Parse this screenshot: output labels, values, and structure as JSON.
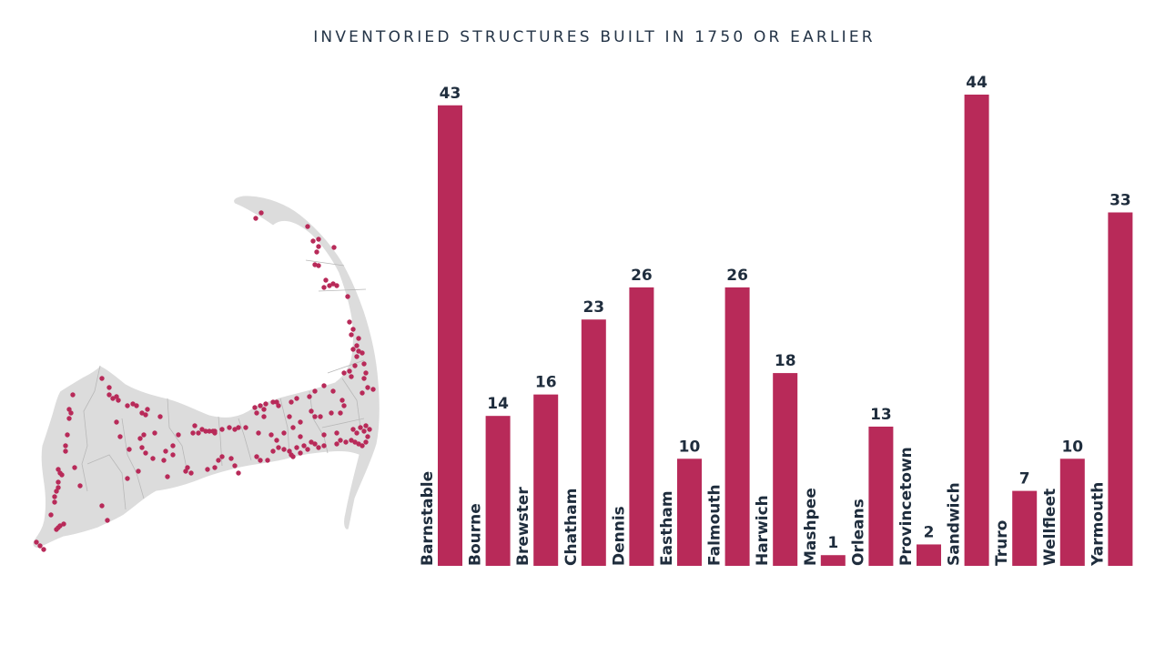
{
  "colors": {
    "bar": "#b82a59",
    "text": "#1f2d3d",
    "land": "#dcdcdc",
    "boundary": "#b8b8b8",
    "marker": "#b82a59"
  },
  "map": {
    "icon": "cape-cod-map-icon"
  },
  "chart_data": {
    "type": "bar",
    "title": "INVENTORIED STRUCTURES BUILT IN 1750 OR EARLIER",
    "categories": [
      "Barnstable",
      "Bourne",
      "Brewster",
      "Chatham",
      "Dennis",
      "Eastham",
      "Falmouth",
      "Harwich",
      "Mashpee",
      "Orleans",
      "Provincetown",
      "Sandwich",
      "Truro",
      "Wellfleet",
      "Yarmouth"
    ],
    "values": [
      43,
      14,
      16,
      23,
      26,
      10,
      26,
      18,
      1,
      13,
      2,
      44,
      7,
      10,
      33
    ],
    "xlabel": "",
    "ylabel": "",
    "ylim": [
      0,
      44
    ],
    "grid": false,
    "legend": "none"
  }
}
